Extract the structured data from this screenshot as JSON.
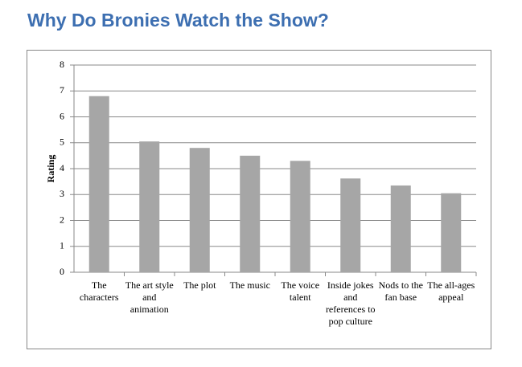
{
  "chart_data": {
    "type": "bar",
    "title": "Why Do Bronies Watch the Show?",
    "y_label": "Rating",
    "categories": [
      "The characters",
      "The art style and animation",
      "The plot",
      "The music",
      "The voice talent",
      "Inside jokes and references to pop culture",
      "Nods to the fan base",
      "The all-ages appeal"
    ],
    "values": [
      6.8,
      5.05,
      4.8,
      4.5,
      4.3,
      3.62,
      3.35,
      3.05
    ],
    "color": "#a6a6a6",
    "ylim": [
      0,
      8
    ],
    "yticks": [
      0,
      1,
      2,
      3,
      4,
      5,
      6,
      7,
      8
    ],
    "grid": true
  }
}
